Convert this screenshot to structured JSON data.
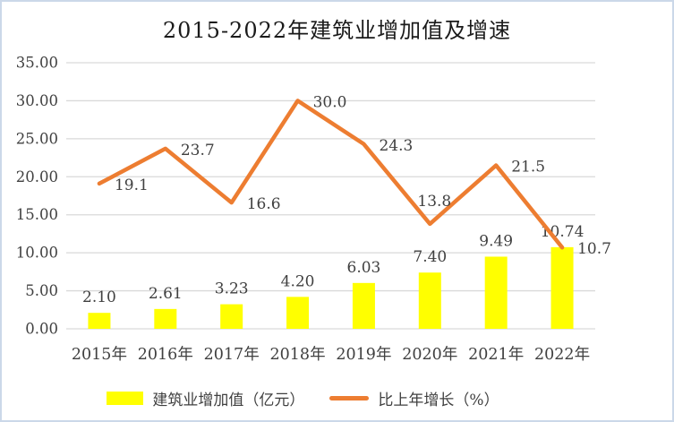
{
  "frame": {
    "border_color": "#CBD8E9",
    "background_color": "#FFFFFF"
  },
  "chart_data": {
    "type": "combo",
    "title": "2015-2022年建筑业增加值及增速",
    "categories": [
      "2015年",
      "2016年",
      "2017年",
      "2018年",
      "2019年",
      "2020年",
      "2021年",
      "2022年"
    ],
    "series": [
      {
        "name": "建筑业增加值（亿元）",
        "type": "bar",
        "color": "#FFFF00",
        "values": [
          2.1,
          2.61,
          3.23,
          4.2,
          6.03,
          7.4,
          9.49,
          10.74
        ],
        "labels": [
          "2.10",
          "2.61",
          "3.23",
          "4.20",
          "6.03",
          "7.40",
          "9.49",
          "10.74"
        ]
      },
      {
        "name": "比上年增长（%）",
        "type": "line",
        "color": "#ED7D31",
        "values": [
          19.1,
          23.7,
          16.6,
          30.0,
          24.3,
          13.8,
          21.5,
          10.7
        ],
        "labels": [
          "19.1",
          "23.7",
          "16.6",
          "30.0",
          "24.3",
          "13.8",
          "21.5",
          "10.7"
        ]
      }
    ],
    "y_axis": {
      "min": 0,
      "max": 35,
      "step": 5,
      "tick_labels": [
        "0.00",
        "5.00",
        "10.00",
        "15.00",
        "20.00",
        "25.00",
        "30.00",
        "35.00"
      ]
    },
    "grid": true,
    "gridline_color": "#D9D9D9",
    "label_color": "#404040",
    "legend_position": "bottom"
  }
}
